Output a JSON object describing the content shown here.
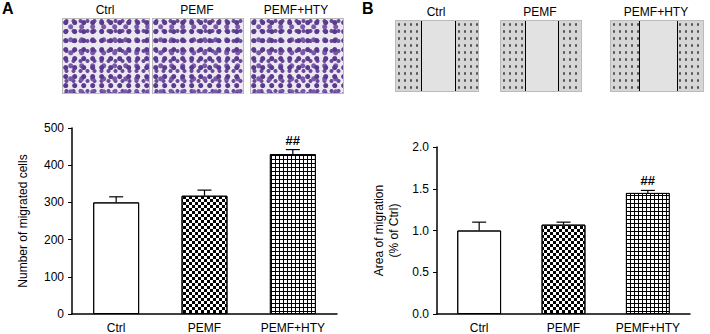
{
  "figure": {
    "panels": [
      {
        "label": "A",
        "image_labels": [
          "Ctrl",
          "PEMF",
          "PEMF+HTY"
        ]
      },
      {
        "label": "B",
        "image_labels": [
          "Ctrl",
          "PEMF",
          "PEMF+HTY"
        ]
      }
    ]
  },
  "chart_data": [
    {
      "type": "bar",
      "y_label": "Number of migrated cells",
      "categories": [
        "Ctrl",
        "PEMF",
        "PEMF+HTY"
      ],
      "values": [
        300,
        318,
        430
      ],
      "error": [
        15,
        15,
        12
      ],
      "colors": [
        "#ffffff",
        "#ffffff",
        "#000000"
      ],
      "annotations": [
        {
          "category": "PEMF+HTY",
          "text": "##"
        }
      ],
      "ylim": [
        0,
        500
      ],
      "yticks": [
        0,
        100,
        200,
        300,
        400,
        500
      ],
      "grid": false
    },
    {
      "type": "bar",
      "y_label": "Area of migration\n(% of Ctrl)",
      "categories": [
        "Ctrl",
        "PEMF",
        "PEMF+HTY"
      ],
      "values": [
        1.0,
        1.07,
        1.45
      ],
      "error": [
        0.1,
        0.03,
        0.03
      ],
      "colors": [
        "#ffffff",
        "#ffffff",
        "#000000"
      ],
      "annotations": [
        {
          "category": "PEMF+HTY",
          "text": "##"
        }
      ],
      "ylim": [
        0,
        2
      ],
      "yticks": [
        {
          "value": 0,
          "label": "0.0"
        },
        0.5,
        {
          "value": 1,
          "label": "1.0"
        },
        1.5,
        {
          "value": 2,
          "label": "2.0"
        }
      ],
      "grid": false
    }
  ]
}
